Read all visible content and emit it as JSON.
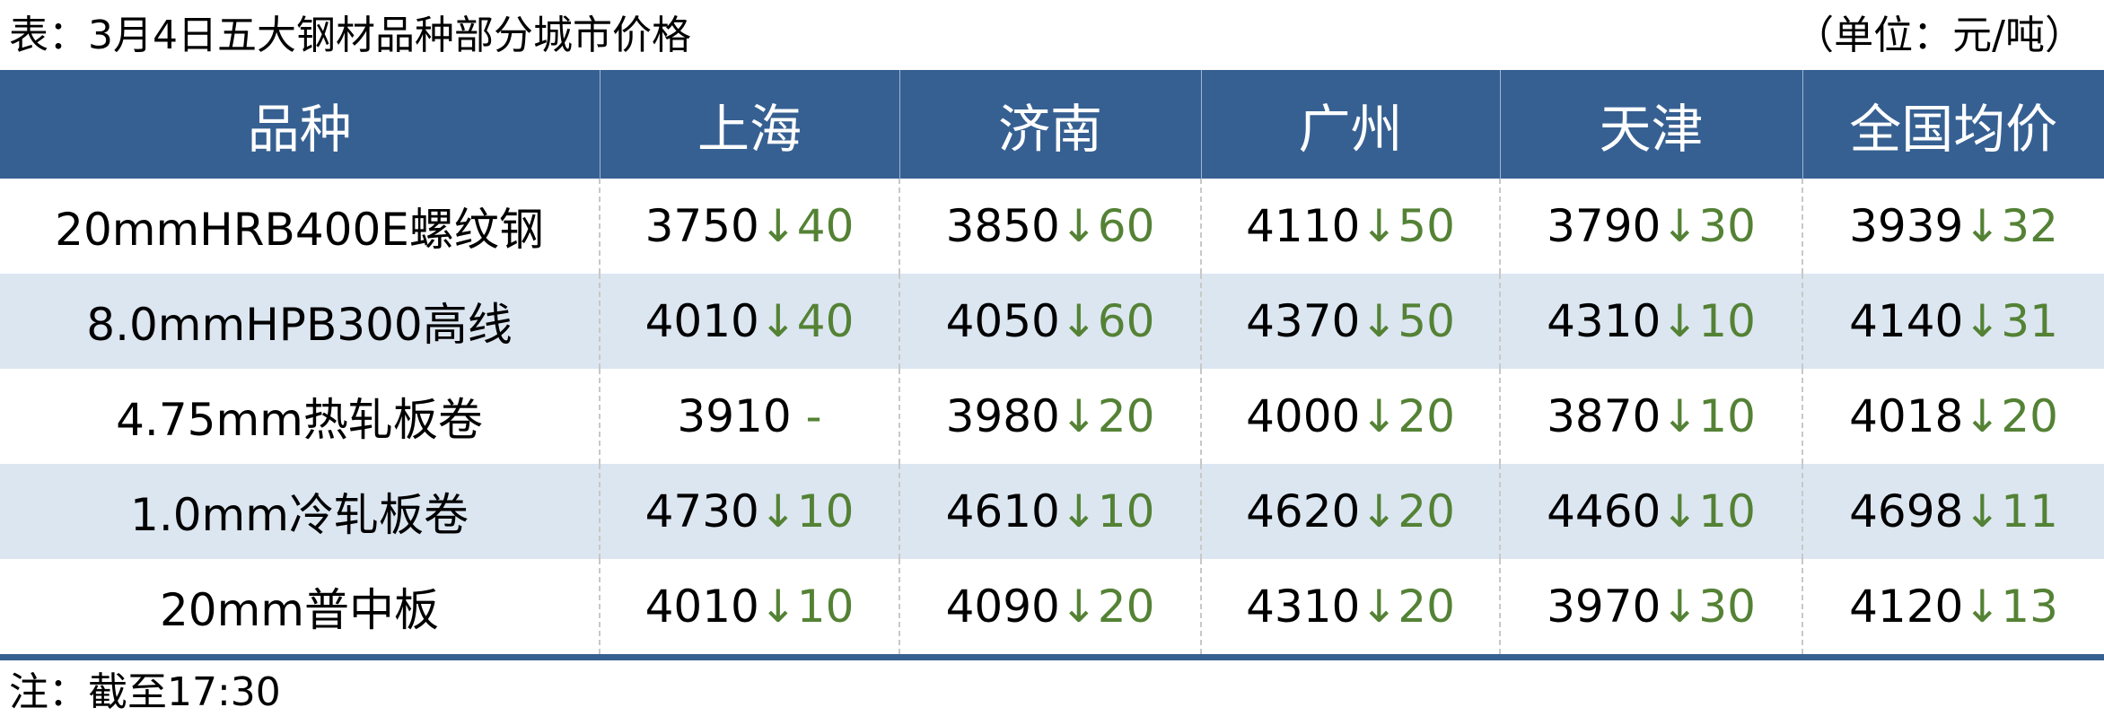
{
  "title": "表：3月4日五大钢材品种部分城市价格",
  "unit": "（单位：元/吨）",
  "colors": {
    "header_bg": "#366092",
    "alt_row_bg": "#dce6f1",
    "down_color": "#548235"
  },
  "table": {
    "headers": [
      "品种",
      "上海",
      "济南",
      "广州",
      "天津",
      "全国均价"
    ],
    "rows": [
      {
        "name": "20mmHRB400E螺纹钢",
        "cells": [
          {
            "price": "3750",
            "change": "↓40"
          },
          {
            "price": "3850",
            "change": "↓60"
          },
          {
            "price": "4110",
            "change": "↓50"
          },
          {
            "price": "3790",
            "change": "↓30"
          },
          {
            "price": "3939",
            "change": "↓32"
          }
        ]
      },
      {
        "name": "8.0mmHPB300高线",
        "cells": [
          {
            "price": "4010",
            "change": "↓40"
          },
          {
            "price": "4050",
            "change": "↓60"
          },
          {
            "price": "4370",
            "change": "↓50"
          },
          {
            "price": "4310",
            "change": "↓10"
          },
          {
            "price": "4140",
            "change": "↓31"
          }
        ]
      },
      {
        "name": "4.75mm热轧板卷",
        "cells": [
          {
            "price": "3910",
            "change": " -"
          },
          {
            "price": "3980",
            "change": "↓20"
          },
          {
            "price": "4000",
            "change": "↓20"
          },
          {
            "price": "3870",
            "change": "↓10"
          },
          {
            "price": "4018",
            "change": "↓20"
          }
        ]
      },
      {
        "name": "1.0mm冷轧板卷",
        "cells": [
          {
            "price": "4730",
            "change": "↓10"
          },
          {
            "price": "4610",
            "change": "↓10"
          },
          {
            "price": "4620",
            "change": "↓20"
          },
          {
            "price": "4460",
            "change": "↓10"
          },
          {
            "price": "4698",
            "change": "↓11"
          }
        ]
      },
      {
        "name": "20mm普中板",
        "cells": [
          {
            "price": "4010",
            "change": "↓10"
          },
          {
            "price": "4090",
            "change": "↓20"
          },
          {
            "price": "4310",
            "change": "↓20"
          },
          {
            "price": "3970",
            "change": "↓30"
          },
          {
            "price": "4120",
            "change": "↓13"
          }
        ]
      }
    ]
  },
  "note": "注：截至17:30"
}
